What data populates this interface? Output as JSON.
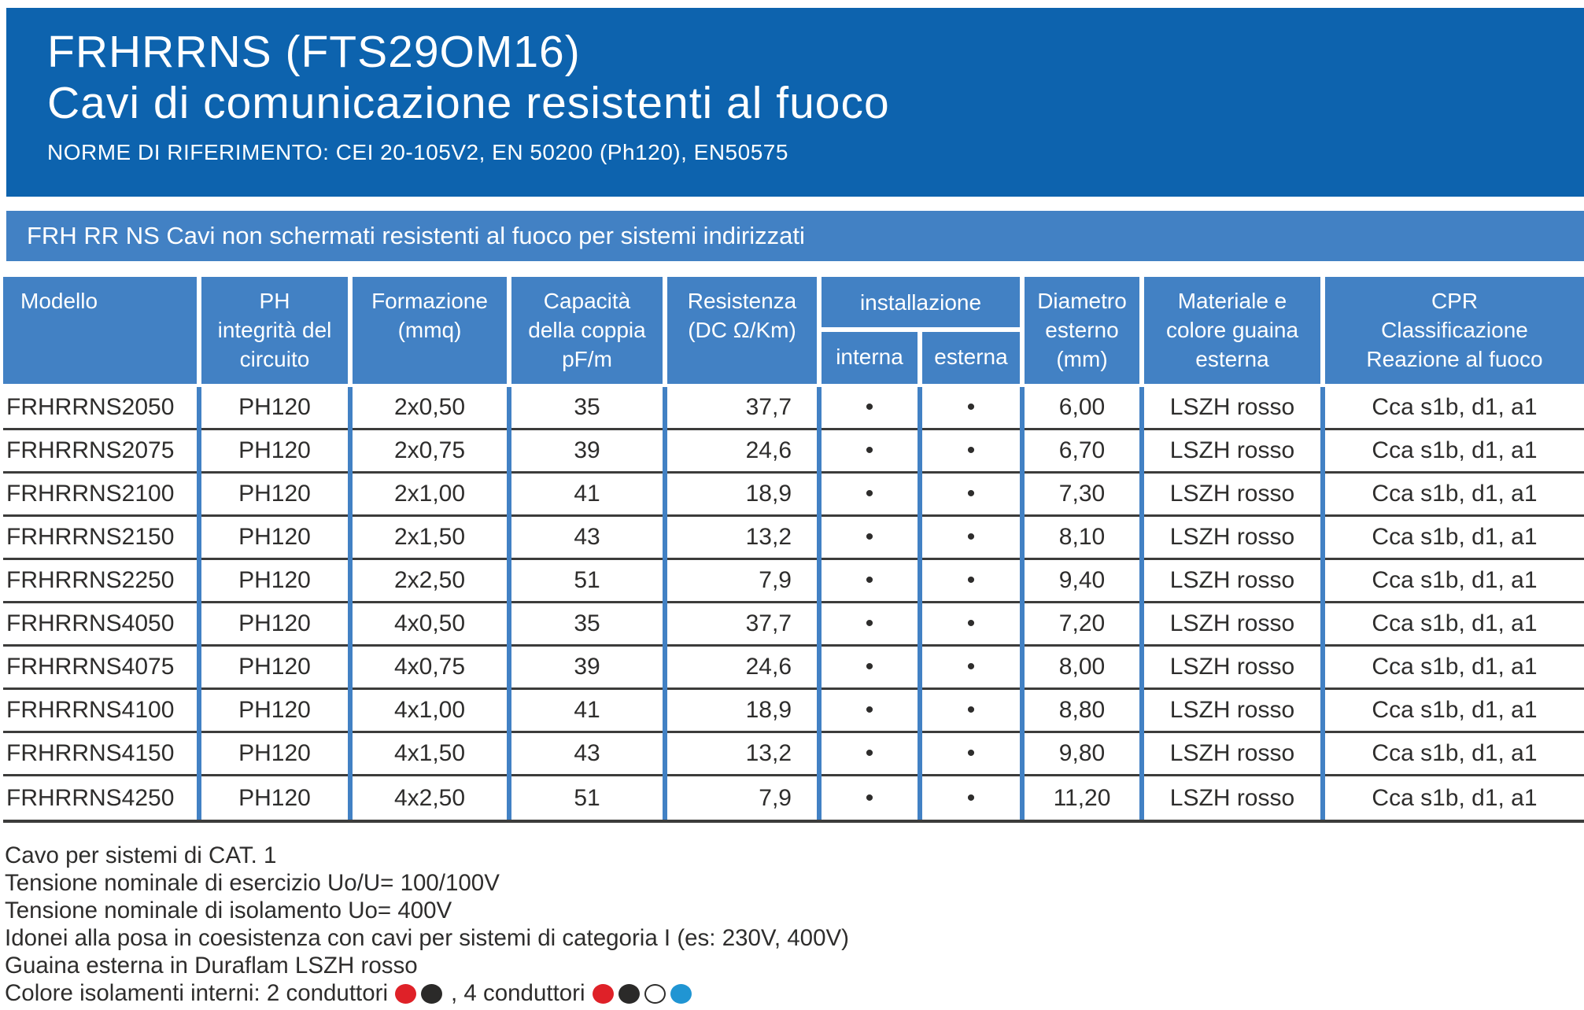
{
  "header": {
    "title": "FRHRRNS (FTS29OM16)",
    "subtitle": "Cavi di comunicazione resistenti al fuoco",
    "norms": "NORME DI RIFERIMENTO: CEI 20-105V2, EN 50200 (Ph120), EN50575"
  },
  "banner": {
    "text": "FRH RR NS Cavi non schermati resistenti al fuoco per sistemi indirizzati"
  },
  "table": {
    "head": {
      "modello": "Modello",
      "ph": "PH\nintegrità del\ncircuito",
      "formazione": "Formazione\n(mmq)",
      "capacita": "Capacità\ndella coppia\npF/m",
      "resistenza": "Resistenza\n(DC Ω/Km)",
      "installazione": "installazione",
      "interna": "interna",
      "esterna": "esterna",
      "diametro": "Diametro\nesterno\n(mm)",
      "materiale": "Materiale e\ncolore guaina\nesterna",
      "cpr": "CPR\nClassificazione\nReazione al fuoco"
    },
    "rows": [
      [
        "FRHRRNS2050",
        "PH120",
        "2x0,50",
        "35",
        "37,7",
        "•",
        "•",
        "6,00",
        "LSZH rosso",
        "Cca s1b, d1, a1"
      ],
      [
        "FRHRRNS2075",
        "PH120",
        "2x0,75",
        "39",
        "24,6",
        "•",
        "•",
        "6,70",
        "LSZH rosso",
        "Cca s1b, d1, a1"
      ],
      [
        "FRHRRNS2100",
        "PH120",
        "2x1,00",
        "41",
        "18,9",
        "•",
        "•",
        "7,30",
        "LSZH rosso",
        "Cca s1b, d1, a1"
      ],
      [
        "FRHRRNS2150",
        "PH120",
        "2x1,50",
        "43",
        "13,2",
        "•",
        "•",
        "8,10",
        "LSZH rosso",
        "Cca s1b, d1, a1"
      ],
      [
        "FRHRRNS2250",
        "PH120",
        "2x2,50",
        "51",
        "7,9",
        "•",
        "•",
        "9,40",
        "LSZH rosso",
        "Cca s1b, d1, a1"
      ],
      [
        "FRHRRNS4050",
        "PH120",
        "4x0,50",
        "35",
        "37,7",
        "•",
        "•",
        "7,20",
        "LSZH rosso",
        "Cca s1b, d1, a1"
      ],
      [
        "FRHRRNS4075",
        "PH120",
        "4x0,75",
        "39",
        "24,6",
        "•",
        "•",
        "8,00",
        "LSZH rosso",
        "Cca s1b, d1, a1"
      ],
      [
        "FRHRRNS4100",
        "PH120",
        "4x1,00",
        "41",
        "18,9",
        "•",
        "•",
        "8,80",
        "LSZH rosso",
        "Cca s1b, d1, a1"
      ],
      [
        "FRHRRNS4150",
        "PH120",
        "4x1,50",
        "43",
        "13,2",
        "•",
        "•",
        "9,80",
        "LSZH rosso",
        "Cca s1b, d1, a1"
      ],
      [
        "FRHRRNS4250",
        "PH120",
        "4x2,50",
        "51",
        "7,9",
        "•",
        "•",
        "11,20",
        "LSZH rosso",
        "Cca s1b, d1, a1"
      ]
    ]
  },
  "notes": [
    "Cavo per sistemi di CAT. 1",
    "Tensione nominale di esercizio Uo/U= 100/100V",
    "Tensione nominale di isolamento Uo= 400V",
    "Idonei alla posa in coesistenza con cavi per sistemi di categoria I (es: 230V, 400V)",
    "Guaina esterna in Duraflam LSZH rosso"
  ],
  "legend": {
    "prefix": "Colore isolamenti interni: 2 conduttori",
    "mid": ", 4 conduttori",
    "two_colors": [
      "red",
      "black"
    ],
    "four_colors": [
      "red",
      "black",
      "white",
      "blue"
    ]
  },
  "colors": {
    "header_blue": "#0d63ae",
    "band_blue": "#4281c4",
    "row_line": "#3c3c3b",
    "text": "#2e2d2c",
    "dot_red": "#df2128",
    "dot_black": "#2b2a29",
    "dot_white": "#ffffff",
    "dot_blue": "#2095d3"
  }
}
